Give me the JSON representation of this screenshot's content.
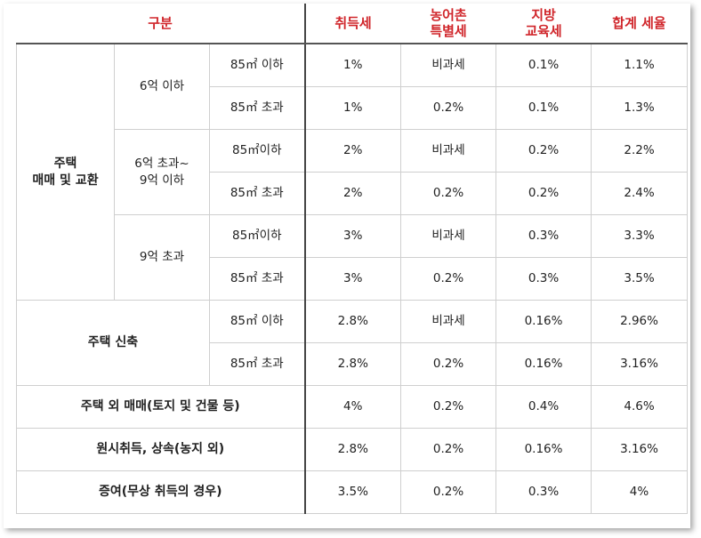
{
  "header": {
    "category": "구분",
    "acquisition_tax": "취득세",
    "rural_tax_line1": "농어촌",
    "rural_tax_line2": "특별세",
    "edu_tax_line1": "지방",
    "edu_tax_line2": "교육세",
    "total_rate": "합계 세율"
  },
  "groups": {
    "housing_trade_line1": "주택",
    "housing_trade_line2": "매매 및 교환",
    "price_6_under": "6억 이하",
    "price_6_9_line1": "6억 초과~",
    "price_6_9_line2": "9억 이하",
    "price_9_over": "9억 초과",
    "new_housing": "주택 신축",
    "non_housing": "주택 외 매매(토지 및 건물 등)",
    "original_inherit": "원시취득, 상속(농지 외)",
    "gift": "증여(무상 취득의 경우)"
  },
  "rows": [
    {
      "area": "85㎡ 이하",
      "acq": "1%",
      "rural": "비과세",
      "edu": "0.1%",
      "total": "1.1%"
    },
    {
      "area": "85㎡ 초과",
      "acq": "1%",
      "rural": "0.2%",
      "edu": "0.1%",
      "total": "1.3%"
    },
    {
      "area": "85㎡이하",
      "acq": "2%",
      "rural": "비과세",
      "edu": "0.2%",
      "total": "2.2%"
    },
    {
      "area": "85㎡ 초과",
      "acq": "2%",
      "rural": "0.2%",
      "edu": "0.2%",
      "total": "2.4%"
    },
    {
      "area": "85㎡이하",
      "acq": "3%",
      "rural": "비과세",
      "edu": "0.3%",
      "total": "3.3%"
    },
    {
      "area": "85㎡ 초과",
      "acq": "3%",
      "rural": "0.2%",
      "edu": "0.3%",
      "total": "3.5%"
    },
    {
      "area": "85㎡ 이하",
      "acq": "2.8%",
      "rural": "비과세",
      "edu": "0.16%",
      "total": "2.96%"
    },
    {
      "area": "85㎡ 초과",
      "acq": "2.8%",
      "rural": "0.2%",
      "edu": "0.16%",
      "total": "3.16%"
    },
    {
      "acq": "4%",
      "rural": "0.2%",
      "edu": "0.4%",
      "total": "4.6%"
    },
    {
      "acq": "2.8%",
      "rural": "0.2%",
      "edu": "0.16%",
      "total": "3.16%"
    },
    {
      "acq": "3.5%",
      "rural": "0.2%",
      "edu": "0.3%",
      "total": "4%"
    }
  ]
}
